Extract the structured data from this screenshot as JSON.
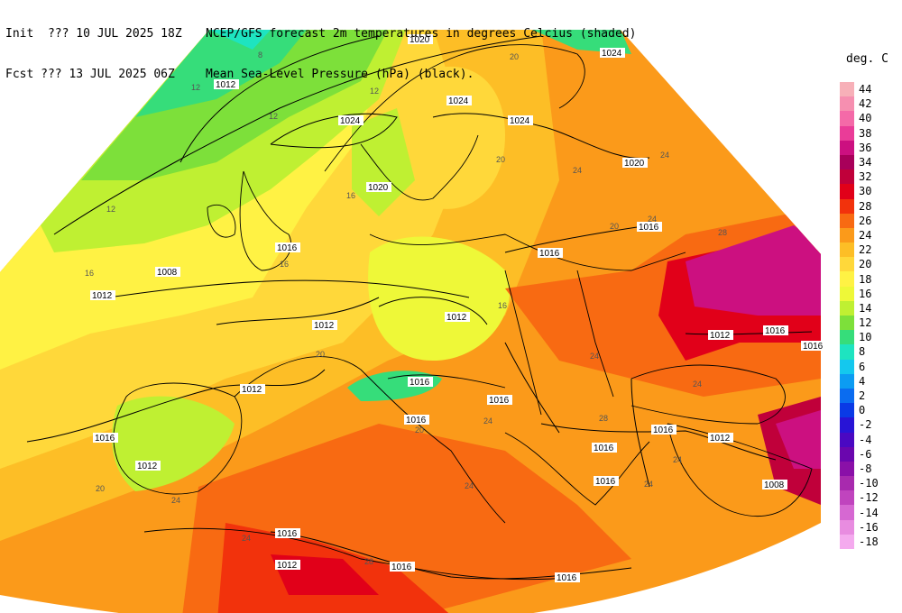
{
  "header": {
    "init_label": "Init  ??? 10 JUL 2025 18Z",
    "fcst_label": "Fcst ??? 13 JUL 2025 06Z",
    "title_line1": "NCEP/GFS forecast 2m temperatures in degrees Celcius (shaded)",
    "title_line2": "Mean Sea-Level Pressure (hPa) (black)."
  },
  "legend": {
    "title": "deg. C",
    "entries": [
      {
        "label": "44",
        "color": "#f7b0b8"
      },
      {
        "label": "42",
        "color": "#f68fb0"
      },
      {
        "label": "40",
        "color": "#f46aa8"
      },
      {
        "label": "38",
        "color": "#ea3c98"
      },
      {
        "label": "36",
        "color": "#cc1080"
      },
      {
        "label": "34",
        "color": "#a8005a"
      },
      {
        "label": "32",
        "color": "#c0003a"
      },
      {
        "label": "30",
        "color": "#e10019"
      },
      {
        "label": "28",
        "color": "#f2320c"
      },
      {
        "label": "26",
        "color": "#f86a12"
      },
      {
        "label": "24",
        "color": "#fb9a1a"
      },
      {
        "label": "22",
        "color": "#fdbe26"
      },
      {
        "label": "20",
        "color": "#ffd83a"
      },
      {
        "label": "18",
        "color": "#fff244"
      },
      {
        "label": "16",
        "color": "#eef838"
      },
      {
        "label": "14",
        "color": "#bff032"
      },
      {
        "label": "12",
        "color": "#7de03a"
      },
      {
        "label": "10",
        "color": "#36dd7a"
      },
      {
        "label": "8",
        "color": "#1ee4c0"
      },
      {
        "label": "6",
        "color": "#14c8ee"
      },
      {
        "label": "4",
        "color": "#0c9cf2"
      },
      {
        "label": "2",
        "color": "#0a6cf0"
      },
      {
        "label": "0",
        "color": "#0a3ae6"
      },
      {
        "label": "-2",
        "color": "#2814d6"
      },
      {
        "label": "-4",
        "color": "#4a08c2"
      },
      {
        "label": "-6",
        "color": "#6a06ae"
      },
      {
        "label": "-8",
        "color": "#8a10a8"
      },
      {
        "label": "-10",
        "color": "#a82aae"
      },
      {
        "label": "-12",
        "color": "#c044be"
      },
      {
        "label": "-14",
        "color": "#d668d2"
      },
      {
        "label": "-16",
        "color": "#e88ce0"
      },
      {
        "label": "-18",
        "color": "#f4aaee"
      }
    ]
  },
  "isobar_labels": [
    "1020",
    "1024",
    "1012",
    "1024",
    "1024",
    "1024",
    "1020",
    "1020",
    "1016",
    "1016",
    "1008",
    "1012",
    "1012",
    "1012",
    "1012",
    "1016",
    "1016",
    "1016",
    "1016",
    "1012",
    "1016",
    "1016",
    "1012",
    "1016",
    "1016",
    "1016",
    "1012",
    "1008",
    "1016",
    "1012",
    "1016",
    "1016",
    "1016"
  ],
  "temperature_labels": [
    "8",
    "12",
    "12",
    "12",
    "20",
    "24",
    "20",
    "16",
    "16",
    "12",
    "16",
    "24",
    "24",
    "28",
    "20",
    "16",
    "20",
    "24",
    "24",
    "24",
    "24",
    "28",
    "24",
    "20",
    "24",
    "24",
    "24",
    "28",
    "20"
  ]
}
